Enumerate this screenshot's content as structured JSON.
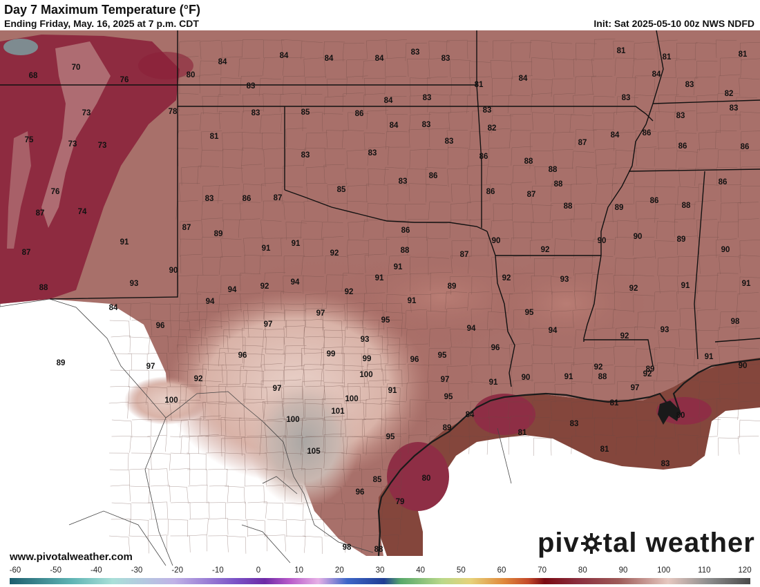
{
  "header": {
    "title": "Day 7 Maximum Temperature (°F)",
    "subtitle": "Ending Friday, May. 16, 2025 at 7 p.m. CDT",
    "init": "Init: Sat 2025-05-10 00z NWS NDFD"
  },
  "footer": {
    "website": "www.pivotalweather.com",
    "brand_left": "piv",
    "brand_right": "tal weather",
    "brand_icon": "gear-icon"
  },
  "colors": {
    "background_map": "#ffffff",
    "hot_brown": "#7a3a32",
    "warm_mauve": "#b07068",
    "mild_pink": "#d8b4ac",
    "hottest_gray": "#b8b4b0",
    "gulf_brown": "#85453a",
    "gulf_hot": "#8e2e45",
    "mountain_crimson": "#8a1f38",
    "border_black": "#111111",
    "county_line": "#6b4a44"
  },
  "color_scale": {
    "labels": [
      "-60",
      "-50",
      "-40",
      "-30",
      "-20",
      "-10",
      "0",
      "10",
      "20",
      "30",
      "40",
      "50",
      "60",
      "70",
      "80",
      "90",
      "100",
      "110",
      "120"
    ],
    "min": -60,
    "max": 120,
    "stops": [
      {
        "v": -60,
        "c": "#1d5e6e"
      },
      {
        "v": -45,
        "c": "#5fb4b4"
      },
      {
        "v": -35,
        "c": "#a9dfd8"
      },
      {
        "v": -20,
        "c": "#c0b2e6"
      },
      {
        "v": -5,
        "c": "#7a52c6"
      },
      {
        "v": 2,
        "c": "#6e2aa6"
      },
      {
        "v": 8,
        "c": "#b85ac9"
      },
      {
        "v": 15,
        "c": "#e6b0e6"
      },
      {
        "v": 22,
        "c": "#3e66c8"
      },
      {
        "v": 31,
        "c": "#203e94"
      },
      {
        "v": 35,
        "c": "#58a86a"
      },
      {
        "v": 45,
        "c": "#b9d88a"
      },
      {
        "v": 52,
        "c": "#e6d27a"
      },
      {
        "v": 60,
        "c": "#e08a3c"
      },
      {
        "v": 66,
        "c": "#c44a2a"
      },
      {
        "v": 70,
        "c": "#7a0a12"
      },
      {
        "v": 78,
        "c": "#8a2e3e"
      },
      {
        "v": 88,
        "c": "#9e5a58"
      },
      {
        "v": 100,
        "c": "#e6c8c0"
      },
      {
        "v": 110,
        "c": "#8c8c8c"
      },
      {
        "v": 120,
        "c": "#4a4a4a"
      }
    ]
  },
  "temperatures": [
    {
      "t": "68"
    },
    {
      "t": "70"
    },
    {
      "t": "76"
    },
    {
      "t": "80"
    },
    {
      "t": "84"
    },
    {
      "t": "84"
    },
    {
      "t": "84"
    },
    {
      "t": "84"
    },
    {
      "t": "83"
    },
    {
      "t": "83"
    },
    {
      "t": "81"
    },
    {
      "t": "81"
    },
    {
      "t": "83"
    },
    {
      "t": "84"
    },
    {
      "t": "83"
    },
    {
      "t": "81"
    },
    {
      "t": "73"
    },
    {
      "t": "78"
    },
    {
      "t": "84"
    },
    {
      "t": "83"
    },
    {
      "t": "85"
    },
    {
      "t": "86"
    },
    {
      "t": "84"
    },
    {
      "t": "83"
    },
    {
      "t": "83"
    },
    {
      "t": "83"
    },
    {
      "t": "82"
    },
    {
      "t": "83"
    },
    {
      "t": "83"
    },
    {
      "t": "75"
    },
    {
      "t": "73"
    },
    {
      "t": "73"
    },
    {
      "t": "81"
    },
    {
      "t": "83"
    },
    {
      "t": "83"
    },
    {
      "t": "84"
    },
    {
      "t": "86"
    },
    {
      "t": "86"
    },
    {
      "t": "87"
    },
    {
      "t": "86"
    },
    {
      "t": "82"
    },
    {
      "t": "84"
    },
    {
      "t": "81"
    },
    {
      "t": "83"
    },
    {
      "t": "83"
    },
    {
      "t": "86"
    },
    {
      "t": "88"
    },
    {
      "t": "88"
    },
    {
      "t": "86"
    },
    {
      "t": "85"
    },
    {
      "t": "83"
    },
    {
      "t": "83"
    },
    {
      "t": "86"
    },
    {
      "t": "87"
    },
    {
      "t": "88"
    },
    {
      "t": "88"
    },
    {
      "t": "86"
    },
    {
      "t": "88"
    },
    {
      "t": "89"
    },
    {
      "t": "87"
    },
    {
      "t": "74"
    },
    {
      "t": "87"
    },
    {
      "t": "89"
    },
    {
      "t": "87"
    },
    {
      "t": "86"
    },
    {
      "t": "86"
    },
    {
      "t": "90"
    },
    {
      "t": "92"
    },
    {
      "t": "90"
    },
    {
      "t": "90"
    },
    {
      "t": "89"
    },
    {
      "t": "90"
    },
    {
      "t": "91"
    },
    {
      "t": "87"
    },
    {
      "t": "91"
    },
    {
      "t": "91"
    },
    {
      "t": "92"
    },
    {
      "t": "88"
    },
    {
      "t": "87"
    },
    {
      "t": "86"
    },
    {
      "t": "90"
    },
    {
      "t": "91"
    },
    {
      "t": "92"
    },
    {
      "t": "93"
    },
    {
      "t": "92"
    },
    {
      "t": "91"
    },
    {
      "t": "91"
    },
    {
      "t": "88"
    },
    {
      "t": "93"
    },
    {
      "t": "94"
    },
    {
      "t": "92"
    },
    {
      "t": "94"
    },
    {
      "t": "92"
    },
    {
      "t": "89"
    },
    {
      "t": "91"
    },
    {
      "t": "95"
    },
    {
      "t": "94"
    },
    {
      "t": "84"
    },
    {
      "t": "96"
    },
    {
      "t": "97"
    },
    {
      "t": "97"
    },
    {
      "t": "95"
    },
    {
      "t": "94"
    },
    {
      "t": "91"
    },
    {
      "t": "94"
    },
    {
      "t": "92"
    },
    {
      "t": "93"
    },
    {
      "t": "98"
    },
    {
      "t": "93"
    },
    {
      "t": "96"
    },
    {
      "t": "99"
    },
    {
      "t": "99"
    },
    {
      "t": "96"
    },
    {
      "t": "95"
    },
    {
      "t": "91"
    },
    {
      "t": "96"
    },
    {
      "t": "100"
    },
    {
      "t": "97"
    },
    {
      "t": "97"
    },
    {
      "t": "91"
    },
    {
      "t": "90"
    },
    {
      "t": "91"
    },
    {
      "t": "92"
    },
    {
      "t": "92"
    },
    {
      "t": "89"
    },
    {
      "t": "91"
    },
    {
      "t": "89"
    },
    {
      "t": "90"
    },
    {
      "t": "100"
    },
    {
      "t": "97"
    },
    {
      "t": "100"
    },
    {
      "t": "95"
    },
    {
      "t": "84"
    },
    {
      "t": "101"
    },
    {
      "t": "100"
    },
    {
      "t": "89"
    },
    {
      "t": "81"
    },
    {
      "t": "83"
    },
    {
      "t": "80"
    },
    {
      "t": "95"
    },
    {
      "t": "105"
    },
    {
      "t": "81"
    },
    {
      "t": "81"
    },
    {
      "t": "83"
    },
    {
      "t": "80"
    },
    {
      "t": "85"
    },
    {
      "t": "96"
    },
    {
      "t": "79"
    },
    {
      "t": "98"
    },
    {
      "t": "88"
    },
    {
      "t": "97"
    },
    {
      "t": "92"
    },
    {
      "t": "88"
    },
    {
      "t": "76"
    }
  ]
}
